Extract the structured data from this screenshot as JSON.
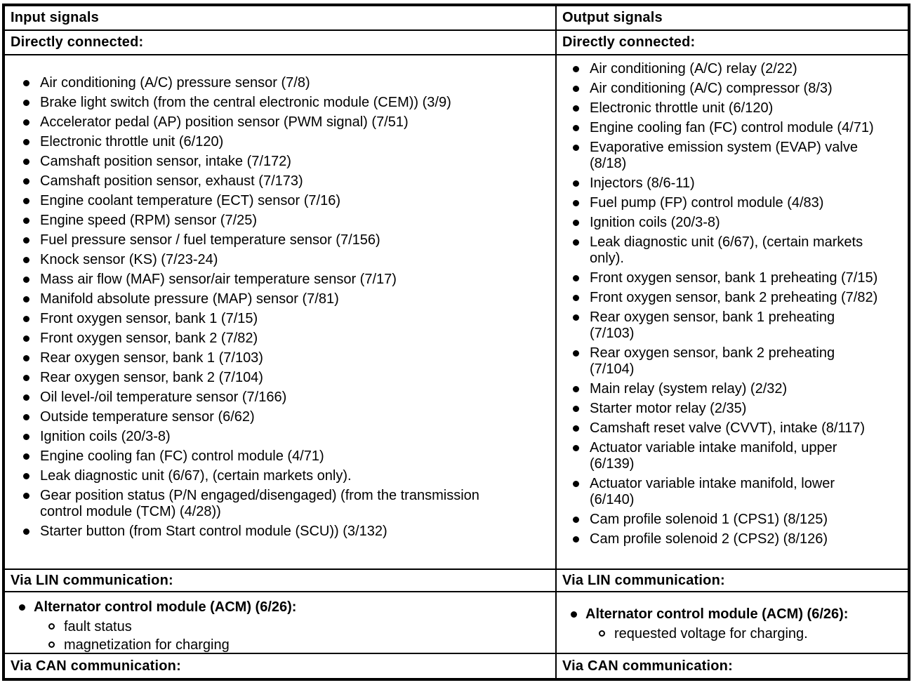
{
  "colors": {
    "text": "#000000",
    "background": "#ffffff",
    "border": "#000000"
  },
  "input_column": {
    "title": "Input signals",
    "directly_connected_label": "Directly connected:",
    "directly_connected_items": [
      "Air conditioning (A/C) pressure sensor (7/8)",
      "Brake light switch (from the central electronic module (CEM)) (3/9)",
      "Accelerator pedal (AP) position sensor (PWM signal) (7/51)",
      "Electronic throttle unit (6/120)",
      "Camshaft position sensor, intake (7/172)",
      "Camshaft position sensor, exhaust (7/173)",
      "Engine coolant temperature (ECT) sensor (7/16)",
      "Engine speed (RPM) sensor (7/25)",
      "Fuel pressure sensor / fuel temperature sensor (7/156)",
      "Knock sensor (KS) (7/23-24)",
      "Mass air flow (MAF) sensor/air temperature sensor (7/17)",
      "Manifold absolute pressure (MAP) sensor (7/81)",
      "Front oxygen sensor, bank 1 (7/15)",
      "Front oxygen sensor, bank 2 (7/82)",
      "Rear oxygen sensor, bank 1 (7/103)",
      "Rear oxygen sensor, bank 2 (7/104)",
      "Oil level-/oil temperature sensor (7/166)",
      "Outside temperature sensor (6/62)",
      "Ignition coils (20/3-8)",
      "Engine cooling fan (FC) control module (4/71)",
      "Leak diagnostic unit (6/67), (certain markets only).",
      "Gear position status (P/N engaged/disengaged) (from the transmission\ncontrol module (TCM) (4/28))",
      "Starter button (from Start control module (SCU)) (3/132)"
    ],
    "lin_label": "Via LIN communication:",
    "lin_module": "Alternator control module (ACM) (6/26):",
    "lin_subitems": [
      "fault status",
      "magnetization for charging"
    ],
    "can_label": "Via CAN communication:"
  },
  "output_column": {
    "title": "Output signals",
    "directly_connected_label": "Directly connected:",
    "directly_connected_items": [
      "Air conditioning (A/C) relay (2/22)",
      "Air conditioning (A/C) compressor (8/3)",
      "Electronic throttle unit (6/120)",
      "Engine cooling fan (FC) control module (4/71)",
      "Evaporative emission system (EVAP) valve\n(8/18)",
      "Injectors (8/6-11)",
      "Fuel pump (FP) control module (4/83)",
      "Ignition coils (20/3-8)",
      "Leak diagnostic unit (6/67), (certain markets\nonly).",
      "Front oxygen sensor, bank 1 preheating (7/15)",
      "Front oxygen sensor, bank 2 preheating (7/82)",
      "Rear oxygen sensor, bank 1 preheating\n(7/103)",
      "Rear oxygen sensor, bank 2 preheating\n(7/104)",
      "Main relay (system relay) (2/32)",
      "Starter motor relay (2/35)",
      "Camshaft reset valve (CVVT), intake (8/117)",
      "Actuator variable intake manifold, upper\n(6/139)",
      "Actuator variable intake manifold, lower\n(6/140)",
      "Cam profile solenoid 1 (CPS1) (8/125)",
      "Cam profile solenoid 2 (CPS2) (8/126)"
    ],
    "lin_label": "Via LIN communication:",
    "lin_module": "Alternator control module (ACM) (6/26):",
    "lin_subitems": [
      "requested voltage for charging."
    ],
    "can_label": "Via CAN communication:"
  }
}
